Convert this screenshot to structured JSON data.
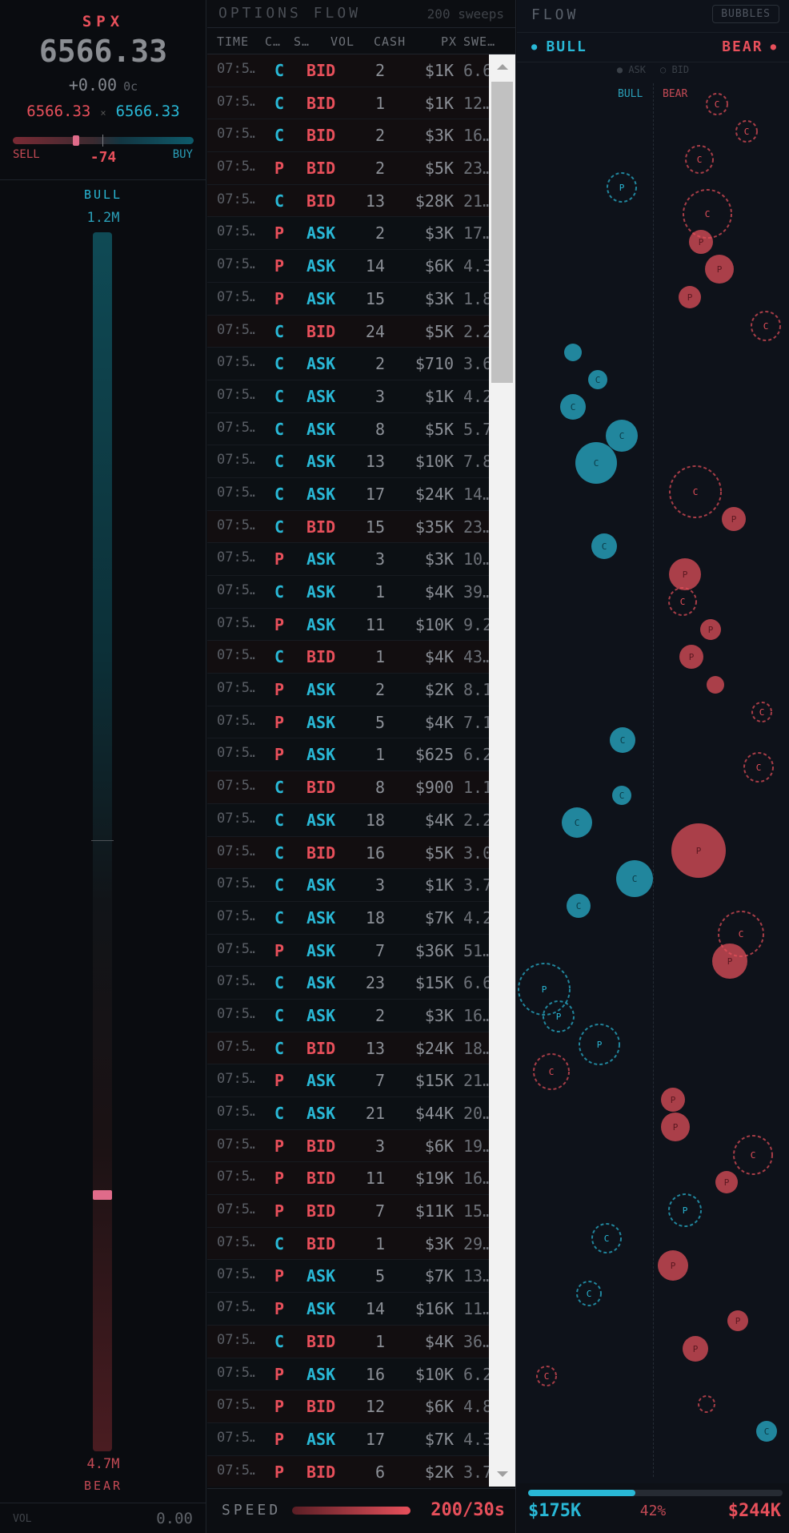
{
  "quote": {
    "symbol": "SPX",
    "price": "6566.33",
    "change": "+0.00",
    "change_cents": "0c",
    "bid": "6566.33",
    "separator": "×",
    "ask": "6566.33",
    "sell_label": "SELL",
    "buy_label": "BUY",
    "delta": "-74",
    "delta_fraction": 0.35
  },
  "pressure": {
    "bull_label": "BULL",
    "bull_value": "1.2M",
    "bear_value": "4.7M",
    "bear_label": "BEAR",
    "level_fraction": 0.79
  },
  "volume": {
    "label": "VOL",
    "value": "0.00"
  },
  "flow": {
    "title": "OPTIONS FLOW",
    "count": "200 sweeps",
    "columns": {
      "time": "TIME",
      "cp": "C…",
      "side": "S…",
      "vol": "VOL",
      "cash": "CASH",
      "px": "PX",
      "sweep": "SWE…"
    },
    "rows": [
      {
        "time": "07:5…",
        "cp": "C",
        "side": "BID",
        "vol": "2",
        "cash": "$1K",
        "px": "6.6"
      },
      {
        "time": "07:5…",
        "cp": "C",
        "side": "BID",
        "vol": "1",
        "cash": "$1K",
        "px": "12…"
      },
      {
        "time": "07:5…",
        "cp": "C",
        "side": "BID",
        "vol": "2",
        "cash": "$3K",
        "px": "16…"
      },
      {
        "time": "07:5…",
        "cp": "P",
        "side": "BID",
        "vol": "2",
        "cash": "$5K",
        "px": "23…"
      },
      {
        "time": "07:5…",
        "cp": "C",
        "side": "BID",
        "vol": "13",
        "cash": "$28K",
        "px": "21…"
      },
      {
        "time": "07:5…",
        "cp": "P",
        "side": "ASK",
        "vol": "2",
        "cash": "$3K",
        "px": "17…"
      },
      {
        "time": "07:5…",
        "cp": "P",
        "side": "ASK",
        "vol": "14",
        "cash": "$6K",
        "px": "4.3"
      },
      {
        "time": "07:5…",
        "cp": "P",
        "side": "ASK",
        "vol": "15",
        "cash": "$3K",
        "px": "1.8"
      },
      {
        "time": "07:5…",
        "cp": "C",
        "side": "BID",
        "vol": "24",
        "cash": "$5K",
        "px": "2.2"
      },
      {
        "time": "07:5…",
        "cp": "C",
        "side": "ASK",
        "vol": "2",
        "cash": "$710",
        "px": "3.6"
      },
      {
        "time": "07:5…",
        "cp": "C",
        "side": "ASK",
        "vol": "3",
        "cash": "$1K",
        "px": "4.2"
      },
      {
        "time": "07:5…",
        "cp": "C",
        "side": "ASK",
        "vol": "8",
        "cash": "$5K",
        "px": "5.7"
      },
      {
        "time": "07:5…",
        "cp": "C",
        "side": "ASK",
        "vol": "13",
        "cash": "$10K",
        "px": "7.8"
      },
      {
        "time": "07:5…",
        "cp": "C",
        "side": "ASK",
        "vol": "17",
        "cash": "$24K",
        "px": "14…"
      },
      {
        "time": "07:5…",
        "cp": "C",
        "side": "BID",
        "vol": "15",
        "cash": "$35K",
        "px": "23…"
      },
      {
        "time": "07:5…",
        "cp": "P",
        "side": "ASK",
        "vol": "3",
        "cash": "$3K",
        "px": "10…"
      },
      {
        "time": "07:5…",
        "cp": "C",
        "side": "ASK",
        "vol": "1",
        "cash": "$4K",
        "px": "39…"
      },
      {
        "time": "07:5…",
        "cp": "P",
        "side": "ASK",
        "vol": "11",
        "cash": "$10K",
        "px": "9.2"
      },
      {
        "time": "07:5…",
        "cp": "C",
        "side": "BID",
        "vol": "1",
        "cash": "$4K",
        "px": "43…"
      },
      {
        "time": "07:5…",
        "cp": "P",
        "side": "ASK",
        "vol": "2",
        "cash": "$2K",
        "px": "8.1"
      },
      {
        "time": "07:5…",
        "cp": "P",
        "side": "ASK",
        "vol": "5",
        "cash": "$4K",
        "px": "7.1"
      },
      {
        "time": "07:5…",
        "cp": "P",
        "side": "ASK",
        "vol": "1",
        "cash": "$625",
        "px": "6.2"
      },
      {
        "time": "07:5…",
        "cp": "C",
        "side": "BID",
        "vol": "8",
        "cash": "$900",
        "px": "1.1"
      },
      {
        "time": "07:5…",
        "cp": "C",
        "side": "ASK",
        "vol": "18",
        "cash": "$4K",
        "px": "2.2"
      },
      {
        "time": "07:5…",
        "cp": "C",
        "side": "BID",
        "vol": "16",
        "cash": "$5K",
        "px": "3.0"
      },
      {
        "time": "07:5…",
        "cp": "C",
        "side": "ASK",
        "vol": "3",
        "cash": "$1K",
        "px": "3.7"
      },
      {
        "time": "07:5…",
        "cp": "C",
        "side": "ASK",
        "vol": "18",
        "cash": "$7K",
        "px": "4.2"
      },
      {
        "time": "07:5…",
        "cp": "P",
        "side": "ASK",
        "vol": "7",
        "cash": "$36K",
        "px": "51…"
      },
      {
        "time": "07:5…",
        "cp": "C",
        "side": "ASK",
        "vol": "23",
        "cash": "$15K",
        "px": "6.6"
      },
      {
        "time": "07:5…",
        "cp": "C",
        "side": "ASK",
        "vol": "2",
        "cash": "$3K",
        "px": "16…"
      },
      {
        "time": "07:5…",
        "cp": "C",
        "side": "BID",
        "vol": "13",
        "cash": "$24K",
        "px": "18…"
      },
      {
        "time": "07:5…",
        "cp": "P",
        "side": "ASK",
        "vol": "7",
        "cash": "$15K",
        "px": "21…"
      },
      {
        "time": "07:5…",
        "cp": "C",
        "side": "ASK",
        "vol": "21",
        "cash": "$44K",
        "px": "20…"
      },
      {
        "time": "07:5…",
        "cp": "P",
        "side": "BID",
        "vol": "3",
        "cash": "$6K",
        "px": "19…"
      },
      {
        "time": "07:5…",
        "cp": "P",
        "side": "BID",
        "vol": "11",
        "cash": "$19K",
        "px": "16…"
      },
      {
        "time": "07:5…",
        "cp": "P",
        "side": "BID",
        "vol": "7",
        "cash": "$11K",
        "px": "15…"
      },
      {
        "time": "07:5…",
        "cp": "C",
        "side": "BID",
        "vol": "1",
        "cash": "$3K",
        "px": "29…"
      },
      {
        "time": "07:5…",
        "cp": "P",
        "side": "ASK",
        "vol": "5",
        "cash": "$7K",
        "px": "13…"
      },
      {
        "time": "07:5…",
        "cp": "P",
        "side": "ASK",
        "vol": "14",
        "cash": "$16K",
        "px": "11…"
      },
      {
        "time": "07:5…",
        "cp": "C",
        "side": "BID",
        "vol": "1",
        "cash": "$4K",
        "px": "36…"
      },
      {
        "time": "07:5…",
        "cp": "P",
        "side": "ASK",
        "vol": "16",
        "cash": "$10K",
        "px": "6.2"
      },
      {
        "time": "07:5…",
        "cp": "P",
        "side": "BID",
        "vol": "12",
        "cash": "$6K",
        "px": "4.8"
      },
      {
        "time": "07:5…",
        "cp": "P",
        "side": "ASK",
        "vol": "17",
        "cash": "$7K",
        "px": "4.3"
      },
      {
        "time": "07:5…",
        "cp": "P",
        "side": "BID",
        "vol": "6",
        "cash": "$2K",
        "px": "3.7"
      }
    ],
    "speed_label": "SPEED",
    "speed_value": "200/30s",
    "speed_fraction": 1.0
  },
  "bubbles_panel": {
    "title": "FLOW",
    "toggle_label": "BUBBLES",
    "bull_label": "BULL",
    "bear_label": "BEAR",
    "legend_ask": "● ASK",
    "legend_bid": "○ BID",
    "side_bull": "BULL",
    "side_bear": "BEAR",
    "colors": {
      "bull": "#29b8d6",
      "bear": "#e8505b"
    },
    "bubbles": [
      {
        "t": "C",
        "bull": false,
        "ask": false
      },
      {
        "t": "C",
        "bull": false,
        "ask": false
      },
      {
        "t": "C",
        "bull": false,
        "ask": false
      },
      {
        "t": "P",
        "bull": true,
        "ask": false
      },
      {
        "t": "C",
        "bull": false,
        "ask": false
      },
      {
        "t": "P",
        "bull": false,
        "ask": true
      },
      {
        "t": "P",
        "bull": false,
        "ask": true
      },
      {
        "t": "P",
        "bull": false,
        "ask": true
      },
      {
        "t": "C",
        "bull": false,
        "ask": false
      },
      {
        "t": "C",
        "bull": true,
        "ask": true
      },
      {
        "t": "C",
        "bull": true,
        "ask": true
      },
      {
        "t": "C",
        "bull": true,
        "ask": true
      },
      {
        "t": "C",
        "bull": true,
        "ask": true
      },
      {
        "t": "C",
        "bull": true,
        "ask": true
      },
      {
        "t": "C",
        "bull": false,
        "ask": false
      },
      {
        "t": "P",
        "bull": false,
        "ask": true
      },
      {
        "t": "C",
        "bull": true,
        "ask": true
      },
      {
        "t": "P",
        "bull": false,
        "ask": true
      },
      {
        "t": "C",
        "bull": false,
        "ask": false
      },
      {
        "t": "P",
        "bull": false,
        "ask": true
      },
      {
        "t": "P",
        "bull": false,
        "ask": true
      },
      {
        "t": "P",
        "bull": false,
        "ask": true
      },
      {
        "t": "C",
        "bull": false,
        "ask": false
      },
      {
        "t": "C",
        "bull": true,
        "ask": true
      },
      {
        "t": "C",
        "bull": false,
        "ask": false
      },
      {
        "t": "C",
        "bull": true,
        "ask": true
      },
      {
        "t": "C",
        "bull": true,
        "ask": true
      },
      {
        "t": "P",
        "bull": false,
        "ask": true
      },
      {
        "t": "C",
        "bull": true,
        "ask": true
      },
      {
        "t": "C",
        "bull": true,
        "ask": true
      },
      {
        "t": "C",
        "bull": false,
        "ask": false
      },
      {
        "t": "P",
        "bull": false,
        "ask": true
      },
      {
        "t": "P",
        "bull": true,
        "ask": false
      },
      {
        "t": "P",
        "bull": true,
        "ask": false
      },
      {
        "t": "P",
        "bull": true,
        "ask": false
      },
      {
        "t": "C",
        "bull": false,
        "ask": false
      },
      {
        "t": "P",
        "bull": false,
        "ask": true
      },
      {
        "t": "P",
        "bull": false,
        "ask": true
      },
      {
        "t": "C",
        "bull": false,
        "ask": false
      },
      {
        "t": "P",
        "bull": false,
        "ask": true
      },
      {
        "t": "P",
        "bull": true,
        "ask": false
      },
      {
        "t": "P",
        "bull": false,
        "ask": true
      },
      {
        "t": "C",
        "bull": true,
        "ask": false
      },
      {
        "t": "P",
        "bull": false,
        "ask": true
      },
      {
        "t": "P",
        "bull": false,
        "ask": true
      },
      {
        "t": "C",
        "bull": true,
        "ask": false
      },
      {
        "t": "C",
        "bull": false,
        "ask": false
      },
      {
        "t": "C",
        "bull": false,
        "ask": false
      },
      {
        "t": "C",
        "bull": true,
        "ask": true
      }
    ],
    "bull_total": "$175K",
    "bull_pct": "42%",
    "bull_fraction": 0.42,
    "bear_total": "$244K"
  }
}
